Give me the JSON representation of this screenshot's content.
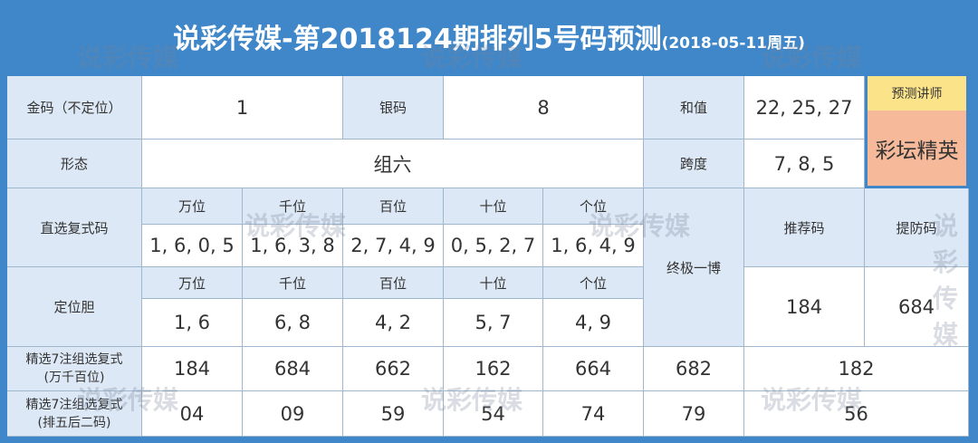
{
  "title": {
    "main": "说彩传媒-第2018124期排列5号码预测",
    "date": "(2018-05-11周五)"
  },
  "watermark": "说彩传媒",
  "row1": {
    "gold_label": "金码（不定位）",
    "gold_value": "1",
    "silver_label": "银码",
    "silver_value": "8",
    "sum_label": "和值",
    "sum_value": "22, 25, 27",
    "lecturer_label": "预测讲师",
    "lecturer_name": "彩坛精英"
  },
  "row2": {
    "form_label": "形态",
    "form_value": "组六",
    "span_label": "跨度",
    "span_value": "7, 8, 5"
  },
  "positions": [
    "万位",
    "千位",
    "百位",
    "十位",
    "个位"
  ],
  "direct": {
    "label": "直选复式码",
    "values": [
      "1, 6, 0, 5",
      "1, 6, 3, 8",
      "2, 7, 4, 9",
      "0, 5, 2, 7",
      "1, 6, 4, 9"
    ]
  },
  "dingwei": {
    "label": "定位胆",
    "values": [
      "1, 6",
      "6, 8",
      "4, 2",
      "5, 7",
      "4, 9"
    ]
  },
  "ultimate": {
    "label": "终极一博",
    "recommend_label": "推荐码",
    "recommend_value": "184",
    "guard_label": "提防码",
    "guard_value": "684"
  },
  "pick1": {
    "label1": "精选7注组选复式",
    "label2": "(万千百位)",
    "values": [
      "184",
      "684",
      "662",
      "162",
      "664",
      "682",
      "182"
    ]
  },
  "pick2": {
    "label1": "精选7注组选复式",
    "label2": "(排五后二码)",
    "values": [
      "04",
      "09",
      "59",
      "54",
      "74",
      "79",
      "56"
    ]
  }
}
